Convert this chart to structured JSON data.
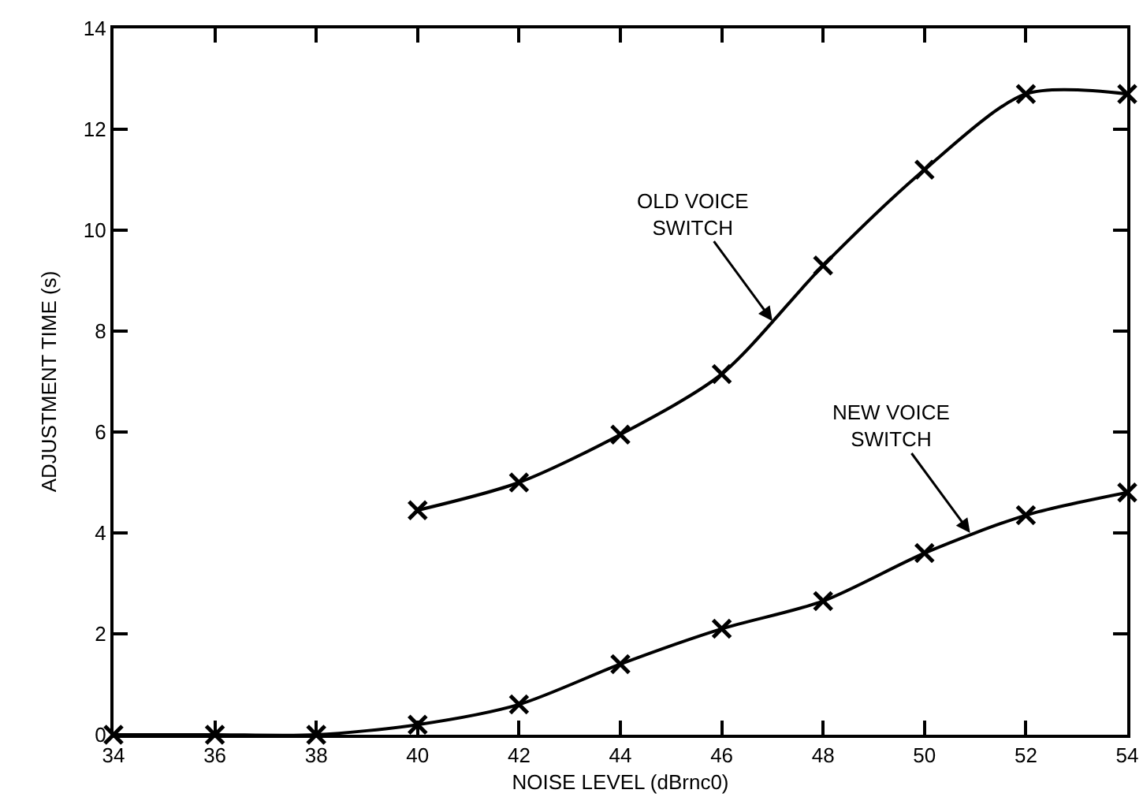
{
  "chart_data": {
    "type": "line",
    "xlabel": "NOISE LEVEL (dBrnc0)",
    "ylabel": "ADJUSTMENT TIME (s)",
    "xlim": [
      34,
      54
    ],
    "xticks": [
      34,
      36,
      38,
      40,
      42,
      44,
      46,
      48,
      50,
      52,
      54
    ],
    "ylim": [
      0,
      14
    ],
    "yticks": [
      0,
      2,
      4,
      6,
      8,
      10,
      12,
      14
    ],
    "grid": false,
    "marker": "cross",
    "line_style": "solid",
    "series": [
      {
        "color": "#000000",
        "x": [
          40,
          42,
          44,
          46,
          48,
          50,
          52,
          54
        ],
        "values": [
          4.45,
          5.0,
          5.95,
          7.15,
          9.3,
          11.2,
          12.7,
          12.7
        ]
      },
      {
        "color": "#000000",
        "x": [
          34,
          36,
          38,
          40,
          42,
          44,
          46,
          48,
          50,
          52,
          54
        ],
        "values": [
          0,
          0,
          0,
          0.2,
          0.6,
          1.4,
          2.1,
          2.65,
          3.6,
          4.35,
          4.8
        ]
      }
    ],
    "annotations": [
      {
        "text": "OLD VOICE\nSWITCH",
        "x": 47,
        "y": 8.2
      },
      {
        "text": "NEW VOICE\nSWITCH",
        "x": 50.9,
        "y": 4.0
      }
    ]
  }
}
